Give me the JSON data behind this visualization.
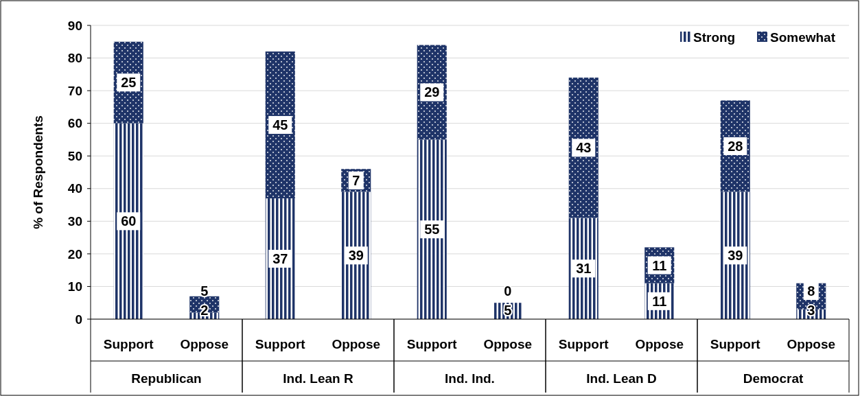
{
  "chart_data": {
    "type": "bar",
    "stacked": true,
    "ylabel": "% of Respondents",
    "categories": [
      "Support",
      "Oppose",
      "Support",
      "Oppose",
      "Support",
      "Oppose",
      "Support",
      "Oppose",
      "Support",
      "Oppose"
    ],
    "annotations": [
      "Republican",
      "Ind. Lean R",
      "Ind. Ind.",
      "Ind. Lean D",
      "Democrat"
    ],
    "series": [
      {
        "name": "Strong",
        "color": "#1f3468",
        "values": [
          60,
          2,
          37,
          39,
          55,
          5,
          31,
          11,
          39,
          3
        ]
      },
      {
        "name": "Somewhat",
        "color": "#1f3468",
        "values": [
          25,
          5,
          45,
          7,
          29,
          0,
          43,
          11,
          28,
          8
        ]
      }
    ],
    "ylim": [
      0,
      90
    ],
    "yticks": [
      0,
      10,
      20,
      30,
      40,
      50,
      60,
      70,
      80,
      90
    ],
    "grid": "y",
    "legend": "top right",
    "data_labels": true
  }
}
